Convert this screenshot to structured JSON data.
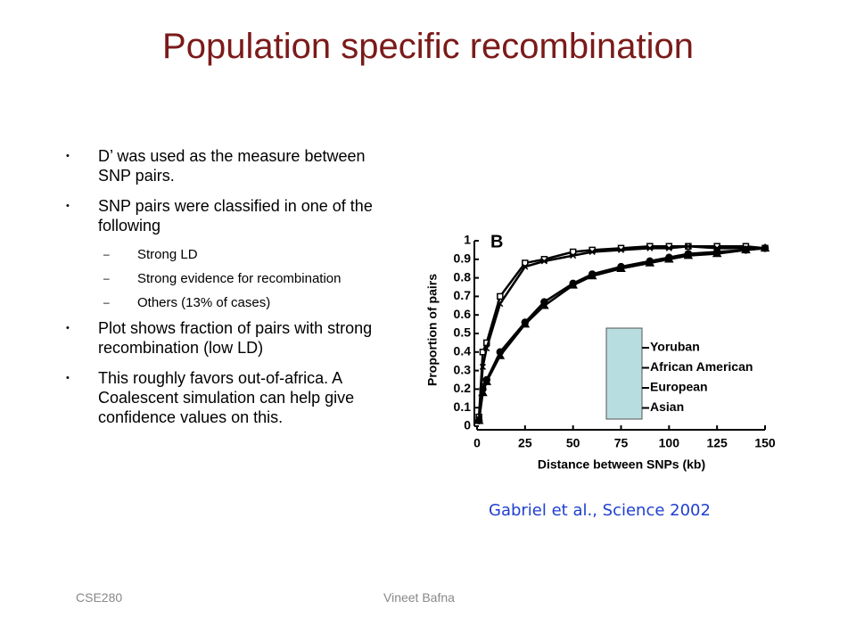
{
  "header": {
    "title": "Population specific recombination"
  },
  "bullets": [
    {
      "level": 1,
      "text": "D’ was used as the measure between SNP pairs."
    },
    {
      "level": 1,
      "text": "SNP pairs were classified in one of the following"
    },
    {
      "level": 2,
      "text": "Strong LD"
    },
    {
      "level": 2,
      "text": "Strong evidence for recombination"
    },
    {
      "level": 2,
      "text": "Others (13% of cases)"
    },
    {
      "level": 1,
      "text": "Plot shows fraction of pairs with strong recombination (low LD)"
    },
    {
      "level": 1,
      "text": "This roughly favors out-of-africa. A Coalescent simulation can help give confidence values on this."
    }
  ],
  "caption": "Gabriel et al., Science 2002",
  "footer": {
    "left": "CSE280",
    "center": "Vineet Bafna"
  },
  "chart_data": {
    "type": "line",
    "panel": "B",
    "x_label": "Distance between SNPs (kb)",
    "y_label": "Proportion of pairs",
    "x": [
      1,
      3,
      5,
      12,
      25,
      35,
      50,
      60,
      75,
      90,
      100,
      110,
      125,
      140,
      150
    ],
    "series": [
      {
        "name": "Yoruban",
        "color": "#000000",
        "marker": "square",
        "values": [
          0.05,
          0.4,
          0.45,
          0.7,
          0.88,
          0.9,
          0.94,
          0.95,
          0.96,
          0.97,
          0.97,
          0.97,
          0.97,
          0.97,
          0.96
        ]
      },
      {
        "name": "African American",
        "color": "#000000",
        "marker": "cross",
        "values": [
          0.04,
          0.32,
          0.42,
          0.66,
          0.86,
          0.89,
          0.92,
          0.94,
          0.95,
          0.96,
          0.96,
          0.97,
          0.96,
          0.96,
          0.96
        ]
      },
      {
        "name": "European",
        "color": "#000000",
        "marker": "circle",
        "values": [
          0.03,
          0.2,
          0.25,
          0.4,
          0.56,
          0.67,
          0.77,
          0.82,
          0.86,
          0.89,
          0.91,
          0.93,
          0.94,
          0.95,
          0.96
        ]
      },
      {
        "name": "Asian",
        "color": "#000000",
        "marker": "triangle",
        "values": [
          0.03,
          0.18,
          0.24,
          0.38,
          0.55,
          0.65,
          0.76,
          0.81,
          0.85,
          0.88,
          0.9,
          0.92,
          0.93,
          0.95,
          0.96
        ]
      }
    ],
    "xlim": [
      0,
      150
    ],
    "xticks": [
      0,
      25,
      50,
      75,
      100,
      125,
      150
    ],
    "ylim": [
      0,
      1
    ],
    "yticks": [
      0,
      0.1,
      0.2,
      0.3,
      0.4,
      0.5,
      0.6,
      0.7,
      0.8,
      0.9,
      1
    ],
    "legend_fill": "#b8dde0"
  }
}
